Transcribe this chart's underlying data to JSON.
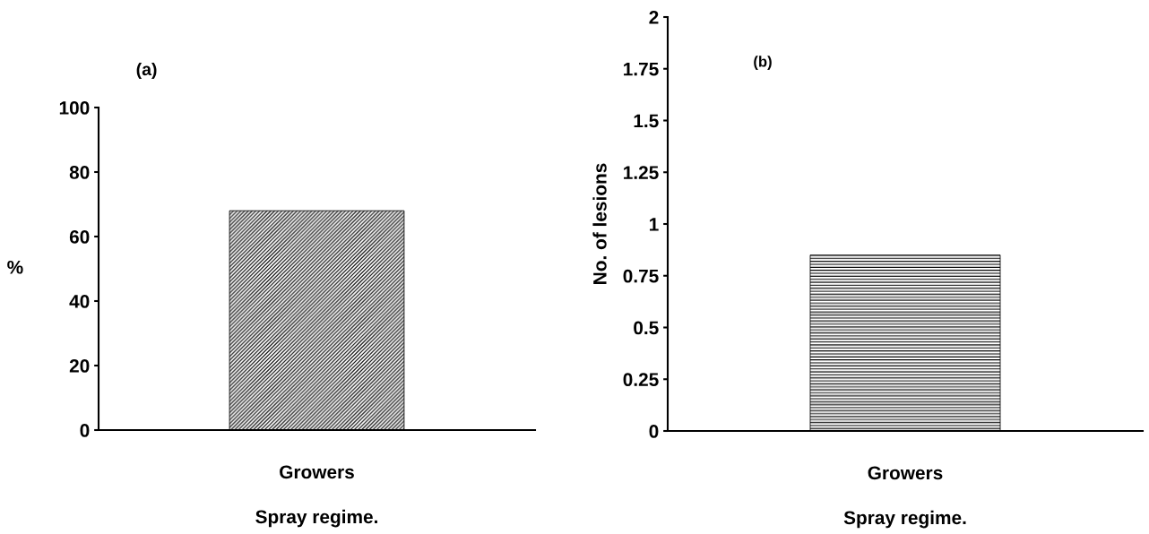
{
  "chart_data": [
    {
      "type": "bar",
      "title": "(a)",
      "categories": [
        "Growers"
      ],
      "values": [
        68
      ],
      "color": "#000000",
      "xlabel": "Spray regime.",
      "ylabel": "%",
      "ylim": [
        0,
        100
      ],
      "yticks": [
        0,
        20,
        40,
        60,
        80,
        100
      ],
      "grid": false,
      "legend": false
    },
    {
      "type": "bar",
      "title": "(b)",
      "categories": [
        "Growers"
      ],
      "values": [
        0.85
      ],
      "color": "#000000",
      "xlabel": "Spray regime.",
      "ylabel": "No. of lesions",
      "ylim": [
        0,
        2
      ],
      "yticks": [
        0,
        0.25,
        0.5,
        0.75,
        1,
        1.25,
        1.5,
        1.75,
        2
      ],
      "grid": false,
      "legend": false
    }
  ]
}
